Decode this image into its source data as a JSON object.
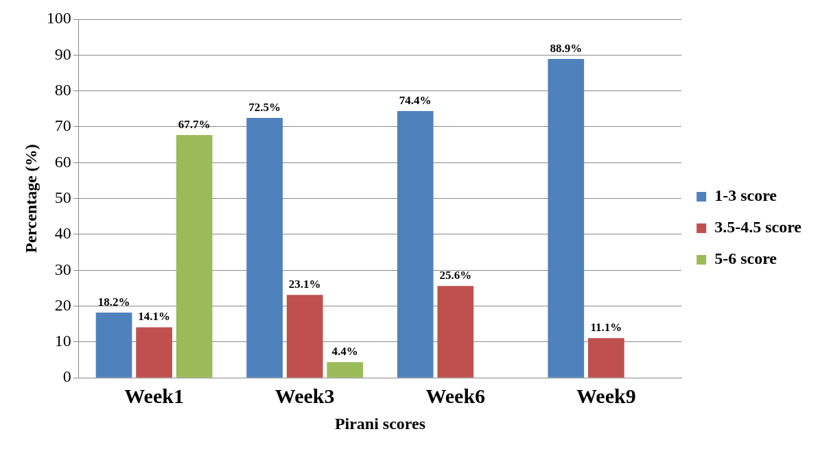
{
  "chart_data": {
    "type": "bar",
    "xlabel": "Pirani scores",
    "ylabel": "Percentage (%)",
    "categories": [
      "Week1",
      "Week3",
      "Week6",
      "Week9"
    ],
    "series": [
      {
        "name": "1-3 score",
        "color": "#4f81bd",
        "values": [
          18.2,
          72.5,
          74.4,
          88.9
        ],
        "value_labels": [
          "18.2%",
          "72.5%",
          "74.4%",
          "88.9%"
        ]
      },
      {
        "name": "3.5-4.5 score",
        "color": "#c0504d",
        "values": [
          14.1,
          23.1,
          25.6,
          11.1
        ],
        "value_labels": [
          "14.1%",
          "23.1%",
          "25.6%",
          "11.1%"
        ]
      },
      {
        "name": "5-6 score",
        "color": "#9bbb59",
        "values": [
          67.7,
          4.4,
          null,
          null
        ],
        "value_labels": [
          "67.7%",
          "4.4%",
          null,
          null
        ]
      }
    ],
    "ylim": [
      0,
      100
    ],
    "yticks": [
      0,
      10,
      20,
      30,
      40,
      50,
      60,
      70,
      80,
      90,
      100
    ],
    "grid": "y",
    "legend": "right"
  }
}
